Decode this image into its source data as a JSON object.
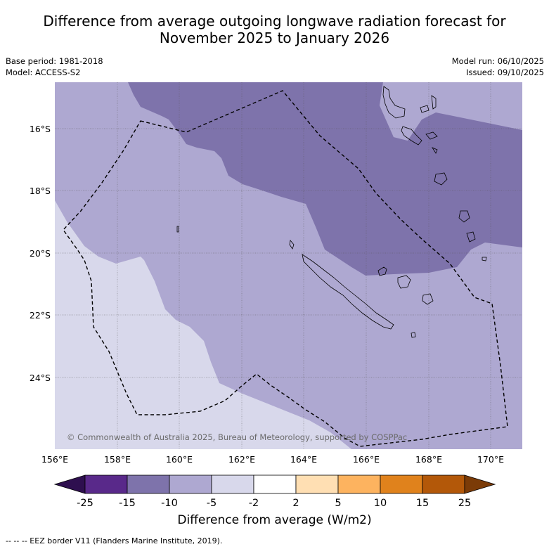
{
  "title_line1": "Difference from average outgoing longwave radiation forecast for",
  "title_line2": "November 2025 to January 2026",
  "base_period": "Base period: 1981-2018",
  "model": "Model: ACCESS-S2",
  "model_run": "Model run: 06/10/2025",
  "issued": "Issued: 09/10/2025",
  "copyright": "© Commonwealth of Australia 2025, Bureau of Meteorology, supported by COSPPac",
  "lat_labels": [
    "16°S",
    "18°S",
    "20°S",
    "22°S",
    "24°S"
  ],
  "lon_labels": [
    "156°E",
    "158°E",
    "160°E",
    "162°E",
    "164°E",
    "166°E",
    "168°E",
    "170°E"
  ],
  "colorbar": {
    "title": "Difference from average (W/m2)",
    "ticks": [
      "-25",
      "-15",
      "-10",
      "-5",
      "-2",
      "2",
      "5",
      "10",
      "15",
      "25"
    ],
    "colors": [
      "#2e0f4f",
      "#59298a",
      "#7e73ab",
      "#aea8d1",
      "#d8d8eb",
      "#ffffff",
      "#ffdfb3",
      "#fdb35f",
      "#e0821c",
      "#b35809",
      "#7b3b07"
    ]
  },
  "footer": "--  --  -- EEZ border V11 (Flanders Marine Institute, 2019)."
}
